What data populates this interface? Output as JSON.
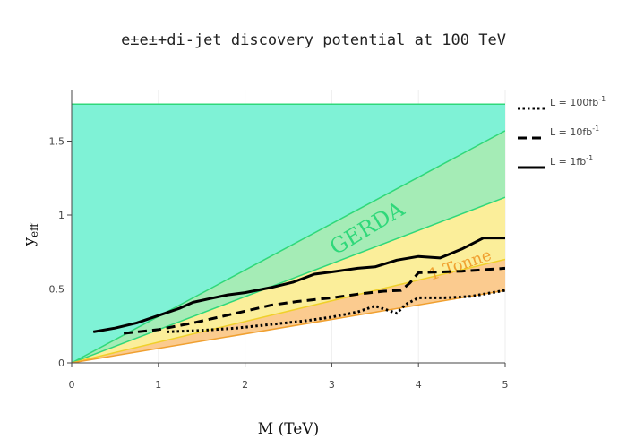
{
  "chart_data": {
    "type": "line",
    "title": "e±e±+di-jet discovery potential at 100 TeV",
    "xlabel": "M (TeV)",
    "ylabel": "y",
    "ylabel_sub": "eff",
    "xlim": [
      0,
      5
    ],
    "ylim": [
      0,
      1.75
    ],
    "xticks": [
      0,
      1,
      2,
      3,
      4,
      5
    ],
    "xtick_labels": [
      "0",
      "1",
      "2",
      "3",
      "4",
      "5"
    ],
    "yticks": [
      0,
      0.5,
      1,
      1.5
    ],
    "ytick_labels": [
      "0",
      "0.5",
      "1",
      "1.5"
    ],
    "grid": true,
    "legend_position": "right",
    "bands": [
      {
        "label": "GERDA",
        "color": "#2fd87a",
        "fill": "#7ff2d6",
        "upper": [
          [
            0,
            1.75
          ],
          [
            5,
            1.75
          ]
        ],
        "lower": [
          [
            0,
            0
          ],
          [
            5,
            1.57
          ]
        ]
      },
      {
        "label": "GERDA",
        "color": "#2fd87a",
        "fill": "#a5ecb6",
        "upper": [
          [
            0,
            0
          ],
          [
            5,
            1.57
          ]
        ],
        "lower": [
          [
            0,
            0
          ],
          [
            5,
            1.12
          ]
        ]
      },
      {
        "label": "1 Tonne",
        "color": "#f0d02a",
        "fill": "#fbee9a",
        "upper": [
          [
            0,
            0
          ],
          [
            5,
            1.12
          ]
        ],
        "lower": [
          [
            0,
            0
          ],
          [
            5,
            0.7
          ]
        ]
      },
      {
        "label": "1 Tonne",
        "color": "#f0a030",
        "fill": "#fbcb8f",
        "upper": [
          [
            0,
            0
          ],
          [
            5,
            0.7
          ]
        ],
        "lower": [
          [
            0,
            0
          ],
          [
            5,
            0.49
          ]
        ]
      }
    ],
    "band_labels": [
      {
        "text": "GERDA",
        "x": 3.45,
        "y": 0.87,
        "color": "#2fd87a",
        "rotate": -31,
        "size": 24
      },
      {
        "text": "1 Tonne",
        "x": 4.5,
        "y": 0.63,
        "color": "#f0a030",
        "rotate": -19,
        "size": 18
      }
    ],
    "series": [
      {
        "name": "L = 1fb",
        "name_sup": "-1",
        "dash": "solid",
        "x": [
          0.25,
          0.5,
          0.75,
          1.0,
          1.25,
          1.4,
          1.6,
          1.8,
          2.0,
          2.3,
          2.55,
          2.8,
          3.0,
          3.3,
          3.5,
          3.75,
          4.0,
          4.25,
          4.5,
          4.75,
          5.0
        ],
        "y": [
          0.21,
          0.235,
          0.27,
          0.32,
          0.37,
          0.41,
          0.435,
          0.46,
          0.475,
          0.51,
          0.545,
          0.6,
          0.615,
          0.64,
          0.65,
          0.695,
          0.72,
          0.71,
          0.77,
          0.845,
          0.845
        ]
      },
      {
        "name": "L = 10fb",
        "name_sup": "-1",
        "dash": "dash",
        "x": [
          0.6,
          1.0,
          1.4,
          1.7,
          2.0,
          2.3,
          2.6,
          3.0,
          3.3,
          3.6,
          3.8,
          3.9,
          4.0,
          4.5,
          5.0
        ],
        "y": [
          0.2,
          0.225,
          0.27,
          0.31,
          0.35,
          0.39,
          0.415,
          0.44,
          0.465,
          0.485,
          0.49,
          0.54,
          0.61,
          0.62,
          0.64
        ]
      },
      {
        "name": "L = 100fb",
        "name_sup": "-1",
        "dash": "dot",
        "x": [
          1.1,
          1.5,
          1.9,
          2.3,
          2.7,
          3.0,
          3.3,
          3.5,
          3.65,
          3.75,
          3.85,
          4.0,
          4.3,
          4.6,
          5.0
        ],
        "y": [
          0.21,
          0.22,
          0.235,
          0.26,
          0.285,
          0.31,
          0.345,
          0.385,
          0.355,
          0.335,
          0.395,
          0.44,
          0.44,
          0.45,
          0.49
        ]
      }
    ]
  }
}
